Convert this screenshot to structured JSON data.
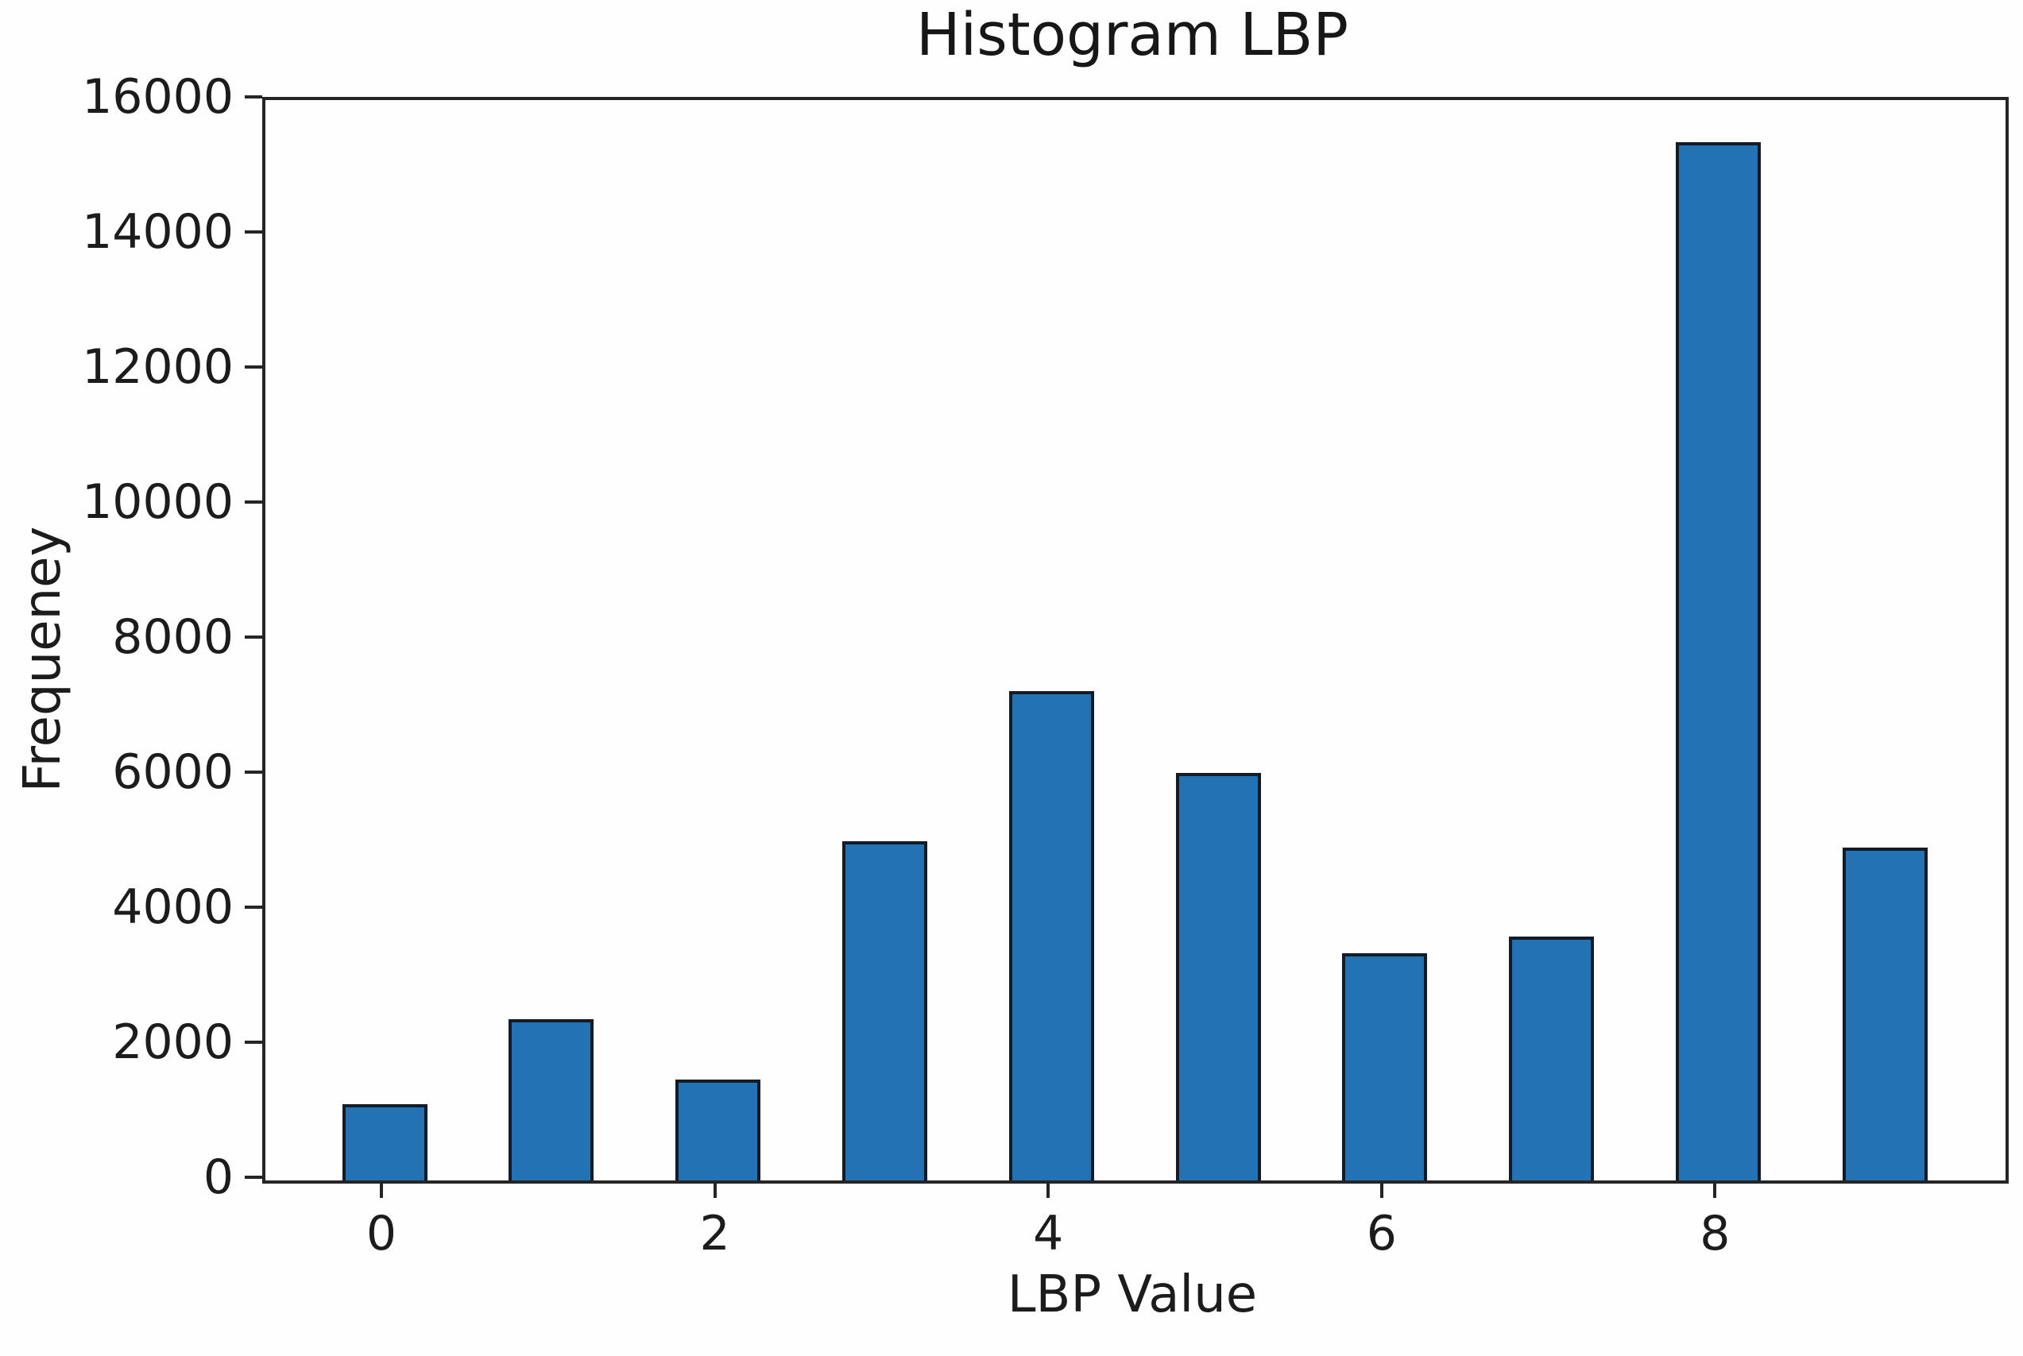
{
  "chart_data": {
    "type": "bar",
    "title": "Histogram LBP",
    "xlabel": "LBP Value",
    "ylabel": "Frequeney",
    "categories": [
      0,
      1,
      2,
      3,
      4,
      5,
      6,
      7,
      8,
      9
    ],
    "values": [
      1130,
      2390,
      1490,
      5020,
      7250,
      6040,
      3360,
      3610,
      15380,
      4930
    ],
    "ylim": [
      0,
      16000
    ],
    "yticks": [
      0,
      2000,
      4000,
      6000,
      8000,
      10000,
      12000,
      14000,
      16000
    ],
    "xticks": [
      0,
      2,
      4,
      6,
      8
    ],
    "grid": false,
    "legend": null,
    "bar_color": "#2272b4",
    "bar_edge_color": "#131c26",
    "axis_color": "#252525",
    "text_color": "#1c1c1c",
    "background_color": "#fefefe"
  }
}
